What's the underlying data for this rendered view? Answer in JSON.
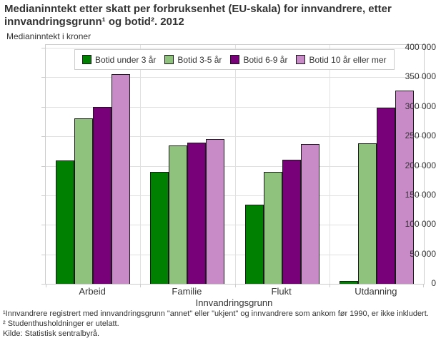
{
  "title": "Medianinntekt etter skatt per forbruksenhet (EU-skala) for innvandrere, etter innvandringsgrunn¹ og botid². 2012",
  "subtitle": "Medianinntekt i kroner",
  "chart_data": {
    "type": "bar",
    "title": "Medianinntekt etter skatt per forbruksenhet (EU-skala) for innvandrere, etter innvandringsgrunn¹ og botid². 2012",
    "subtitle": "Medianinntekt i kroner",
    "categories": [
      "Arbeid",
      "Familie",
      "Flukt",
      "Utdanning"
    ],
    "series": [
      {
        "name": "Botid under 3 år",
        "color": "#008000",
        "values": [
          209000,
          190000,
          134000,
          5000
        ]
      },
      {
        "name": "Botid 3-5 år",
        "color": "#8FC37D",
        "values": [
          280000,
          235000,
          190000,
          238000
        ]
      },
      {
        "name": "Botid 6-9 år",
        "color": "#780078",
        "values": [
          300000,
          239000,
          210000,
          299000
        ]
      },
      {
        "name": "Botid 10 år eller mer",
        "color": "#C88BC8",
        "values": [
          355000,
          245000,
          237000,
          328000
        ]
      }
    ],
    "xlabel": "Innvandringsgrunn",
    "ylabel": "Medianinntekt i kroner",
    "ylim": [
      0,
      400000
    ],
    "ytick_step": 50000,
    "yticks": [
      "400 000",
      "350 000",
      "300 000",
      "250 000",
      "200 000",
      "150 000",
      "100 000",
      "50 000",
      "0"
    ],
    "grid": true,
    "legend_position": "top-inside",
    "bar_border_color": "#1a1a1a"
  },
  "footnotes": [
    "¹Innvandrere registrert med innvandringsgrunn \"annet\" eller \"ukjent\" og innvandrere som ankom før 1990, er ikke inkludert.",
    "² Studenthusholdninger er utelatt."
  ],
  "source": "Kilde: Statistisk sentralbyrå."
}
